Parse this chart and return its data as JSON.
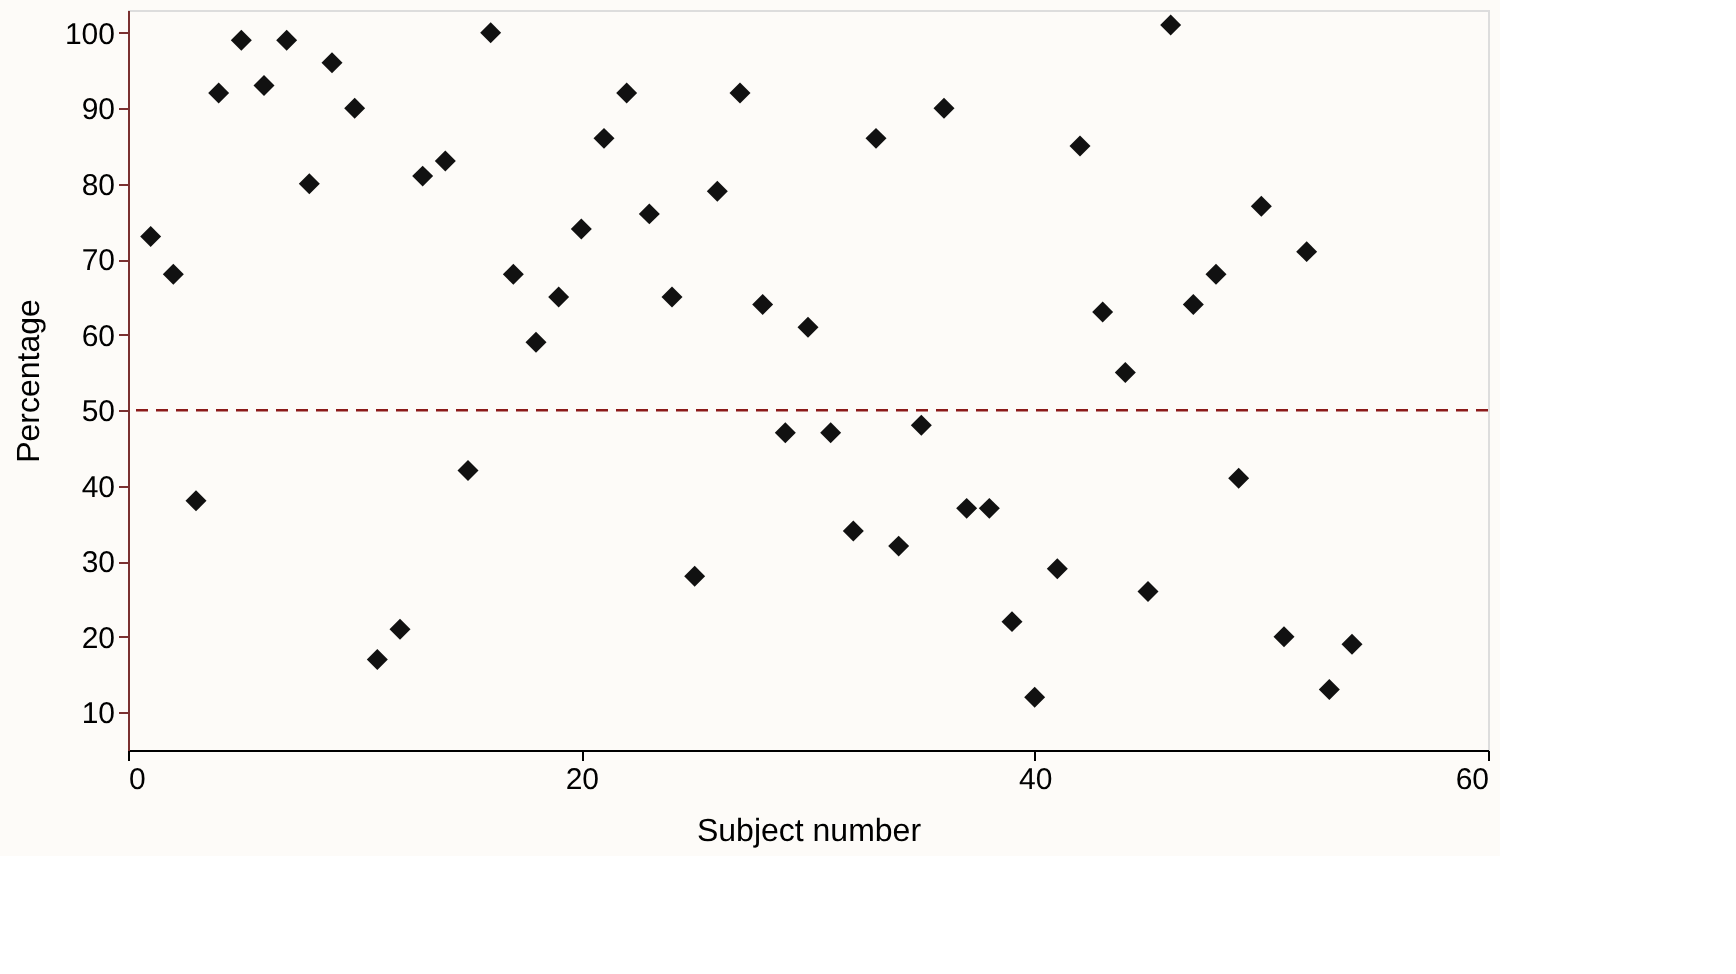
{
  "chart_data": {
    "type": "scatter",
    "xlabel": "Subject number",
    "ylabel": "Percentage",
    "x": [
      1,
      2,
      3,
      4,
      5,
      6,
      7,
      8,
      9,
      10,
      11,
      12,
      13,
      14,
      15,
      16,
      17,
      18,
      19,
      20,
      21,
      22,
      23,
      24,
      25,
      26,
      27,
      28,
      29,
      30,
      31,
      32,
      33,
      34,
      35,
      36,
      37,
      38,
      39,
      40,
      41,
      42,
      43,
      44,
      45,
      46,
      47,
      48,
      49,
      50,
      51,
      52,
      53,
      54
    ],
    "series": [
      {
        "color": "#111111",
        "values": [
          73,
          68,
          38,
          92,
          99,
          93,
          99,
          80,
          96,
          90,
          17,
          21,
          81,
          83,
          42,
          100,
          68,
          59,
          65,
          74,
          86,
          92,
          76,
          65,
          28,
          79,
          92,
          64,
          47,
          61,
          47,
          34,
          86,
          32,
          48,
          90,
          37,
          37,
          22,
          12,
          29,
          85,
          63,
          55,
          26,
          101,
          64,
          68,
          41,
          77,
          20,
          71,
          13,
          19
        ]
      }
    ],
    "marker": "diamond",
    "xlim": [
      0,
      60
    ],
    "xticks": [
      0,
      20,
      40,
      60
    ],
    "ylim": [
      5,
      103
    ],
    "yticks": [
      10,
      20,
      30,
      40,
      50,
      60,
      70,
      80,
      90,
      100
    ],
    "ref_lines": [
      {
        "axis": "y",
        "value": 50,
        "color": "#8b1a1a",
        "line_style": "dashed"
      }
    ],
    "grid": false,
    "legend": false
  }
}
